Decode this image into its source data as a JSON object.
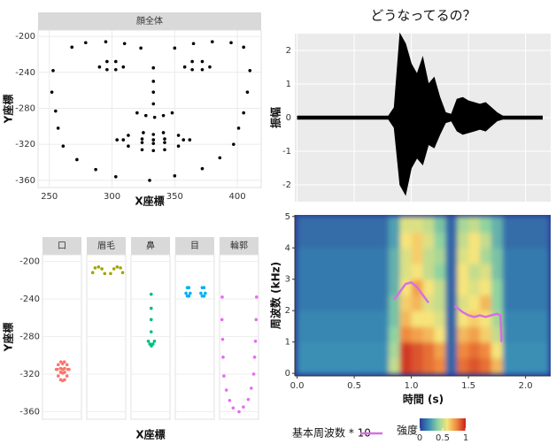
{
  "chart_data": [
    {
      "type": "scatter",
      "strip": "顔全体",
      "xlabel": "X座標",
      "ylabel": "Y座標",
      "color": "#000000",
      "grid": true,
      "xlim": [
        241,
        419
      ],
      "ylim": [
        -368,
        -193
      ],
      "xticks": [
        250,
        300,
        350,
        400
      ],
      "yticks": [
        -200,
        -240,
        -280,
        -320,
        -360
      ],
      "x": [
        304,
        313,
        325,
        333,
        341,
        353,
        362,
        353,
        342,
        333,
        324,
        313,
        309,
        324,
        333,
        342,
        357,
        342,
        333,
        324,
        268,
        279,
        295,
        310,
        323,
        350,
        365,
        380,
        395,
        405,
        333,
        333,
        333,
        333,
        320,
        327,
        334,
        341,
        348,
        290,
        296,
        303,
        309,
        303,
        296,
        358,
        364,
        372,
        378,
        372,
        364,
        253,
        252,
        255,
        257,
        261,
        272,
        287,
        303,
        330,
        350,
        372,
        386,
        397,
        401,
        405,
        408,
        410
      ],
      "y": [
        -315,
        -310,
        -307,
        -309,
        -307,
        -310,
        -315,
        -322,
        -326,
        -327,
        -326,
        -322,
        -315,
        -314,
        -315,
        -314,
        -315,
        -318,
        -319,
        -318,
        -212,
        -207,
        -206,
        -208,
        -213,
        -213,
        -208,
        -206,
        -207,
        -212,
        -235,
        -250,
        -262,
        -275,
        -285,
        -288,
        -290,
        -288,
        -285,
        -234,
        -228,
        -228,
        -234,
        -237,
        -237,
        -234,
        -228,
        -228,
        -234,
        -237,
        -237,
        -238,
        -262,
        -283,
        -302,
        -322,
        -337,
        -348,
        -356,
        -360,
        -355,
        -347,
        -335,
        -320,
        -302,
        -285,
        -262,
        -238
      ]
    },
    {
      "type": "facet-scatter",
      "xlabel": "X座標",
      "ylabel": "Y座標",
      "grid": true,
      "xlim": [
        241,
        419
      ],
      "ylim": [
        -368,
        -193
      ],
      "yticks": [
        -200,
        -240,
        -280,
        -320,
        -360
      ],
      "facets": [
        {
          "name": "口",
          "color": "#f8766d",
          "x": [
            304,
            313,
            325,
            333,
            341,
            353,
            362,
            353,
            342,
            333,
            324,
            313,
            309,
            324,
            333,
            342,
            357,
            342,
            333,
            324
          ],
          "y": [
            -315,
            -310,
            -307,
            -309,
            -307,
            -310,
            -315,
            -322,
            -326,
            -327,
            -326,
            -322,
            -315,
            -314,
            -315,
            -314,
            -315,
            -318,
            -319,
            -318
          ]
        },
        {
          "name": "眉毛",
          "color": "#a3a500",
          "x": [
            268,
            279,
            295,
            310,
            323,
            350,
            365,
            380,
            395,
            405
          ],
          "y": [
            -212,
            -207,
            -206,
            -208,
            -213,
            -213,
            -208,
            -206,
            -207,
            -212
          ]
        },
        {
          "name": "鼻",
          "color": "#00bf7d",
          "x": [
            333,
            333,
            333,
            333,
            320,
            327,
            334,
            341,
            348
          ],
          "y": [
            -235,
            -250,
            -262,
            -275,
            -285,
            -288,
            -290,
            -288,
            -285
          ]
        },
        {
          "name": "目",
          "color": "#00b0f6",
          "x": [
            290,
            296,
            303,
            309,
            303,
            296,
            358,
            364,
            372,
            378,
            372,
            364
          ],
          "y": [
            -234,
            -228,
            -228,
            -234,
            -237,
            -237,
            -234,
            -228,
            -228,
            -234,
            -237,
            -237
          ]
        },
        {
          "name": "輪郭",
          "color": "#e76bf3",
          "x": [
            253,
            252,
            255,
            257,
            261,
            272,
            287,
            303,
            330,
            350,
            372,
            386,
            397,
            401,
            405,
            408,
            410
          ],
          "y": [
            -238,
            -262,
            -283,
            -302,
            -322,
            -337,
            -348,
            -356,
            -360,
            -355,
            -347,
            -335,
            -320,
            -302,
            -285,
            -262,
            -238
          ]
        }
      ]
    },
    {
      "type": "waveform",
      "title": "どうなってるの？",
      "ylabel": "振幅",
      "color": "#000000",
      "grid": true,
      "xlim": [
        -0.02,
        2.22
      ],
      "ylim": [
        -2.5,
        2.5
      ],
      "xticks": [
        0,
        0.5,
        1,
        1.5,
        2
      ],
      "yticks": [
        -2,
        -1,
        0,
        1,
        2
      ],
      "x": [
        0,
        0.05,
        0.1,
        0.15,
        0.2,
        0.25,
        0.3,
        0.35,
        0.4,
        0.45,
        0.5,
        0.55,
        0.6,
        0.65,
        0.7,
        0.75,
        0.8,
        0.85,
        0.9,
        0.95,
        1,
        1.05,
        1.1,
        1.15,
        1.2,
        1.25,
        1.3,
        1.35,
        1.4,
        1.45,
        1.5,
        1.55,
        1.6,
        1.65,
        1.7,
        1.75,
        1.8,
        1.85,
        1.9,
        1.95,
        2,
        2.05,
        2.1,
        2.15
      ],
      "upper": [
        0.05,
        0.05,
        0.05,
        0.05,
        0.05,
        0.05,
        0.05,
        0.05,
        0.05,
        0.05,
        0.05,
        0.05,
        0.05,
        0.05,
        0.05,
        0.05,
        0.05,
        0.3,
        2.5,
        2.2,
        1.6,
        1.3,
        1.8,
        1.0,
        1.2,
        0.6,
        0.15,
        0.1,
        0.55,
        0.6,
        0.5,
        0.45,
        0.4,
        0.45,
        0.3,
        0.15,
        0.05,
        0.05,
        0.05,
        0.05,
        0.05,
        0.05,
        0.05,
        0.05
      ],
      "lower": [
        -0.05,
        -0.05,
        -0.05,
        -0.05,
        -0.05,
        -0.05,
        -0.05,
        -0.05,
        -0.05,
        -0.05,
        -0.05,
        -0.05,
        -0.05,
        -0.05,
        -0.05,
        -0.05,
        -0.05,
        -0.3,
        -2.0,
        -2.3,
        -1.5,
        -1.2,
        -1.4,
        -0.8,
        -0.9,
        -0.5,
        -0.15,
        -0.1,
        -0.4,
        -0.5,
        -0.45,
        -0.4,
        -0.35,
        -0.4,
        -0.25,
        -0.1,
        -0.05,
        -0.05,
        -0.05,
        -0.05,
        -0.05,
        -0.05,
        -0.05,
        -0.05
      ]
    },
    {
      "type": "spectrogram",
      "xlabel": "時間 (s)",
      "ylabel": "周波数 (kHz)",
      "xlim": [
        -0.02,
        2.22
      ],
      "ylim": [
        -0.08,
        5.05
      ],
      "xticks": [
        {
          "value": 0,
          "label": "0.0"
        },
        {
          "value": 0.5,
          "label": "0.5"
        },
        {
          "value": 1,
          "label": "1.0"
        },
        {
          "value": 1.5,
          "label": "1.5"
        },
        {
          "value": 2,
          "label": "2.0"
        }
      ],
      "yticks": [
        0,
        1,
        2,
        3,
        4,
        5
      ],
      "colorscale": [
        "#2b3a98",
        "#3a8fb5",
        "#8fd3a0",
        "#f6e47a",
        "#f08a3c",
        "#c81e1e"
      ],
      "time_bins": [
        0,
        0.1,
        0.2,
        0.3,
        0.4,
        0.5,
        0.6,
        0.7,
        0.8,
        0.9,
        1,
        1.1,
        1.2,
        1.3,
        1.4,
        1.5,
        1.6,
        1.7,
        1.8,
        1.9,
        2,
        2.1,
        2.2
      ],
      "freq_bins": [
        0,
        0.5,
        1,
        1.5,
        2,
        2.5,
        3,
        3.5,
        4,
        4.5,
        5
      ],
      "z": [
        [
          0.2,
          0.2,
          0.2,
          0.2,
          0.2,
          0.2,
          0.2,
          0.2,
          0.5,
          0.95,
          0.9,
          0.85,
          0.8,
          0.1,
          0.85,
          0.9,
          0.85,
          0.7,
          0.2,
          0.2,
          0.2,
          0.2
        ],
        [
          0.2,
          0.2,
          0.2,
          0.2,
          0.2,
          0.2,
          0.2,
          0.2,
          0.45,
          0.95,
          0.9,
          0.85,
          0.75,
          0.1,
          0.8,
          0.85,
          0.8,
          0.6,
          0.2,
          0.2,
          0.2,
          0.2
        ],
        [
          0.18,
          0.18,
          0.18,
          0.18,
          0.18,
          0.18,
          0.18,
          0.18,
          0.4,
          0.8,
          0.75,
          0.7,
          0.6,
          0.1,
          0.7,
          0.75,
          0.65,
          0.5,
          0.18,
          0.18,
          0.18,
          0.18
        ],
        [
          0.18,
          0.18,
          0.18,
          0.18,
          0.18,
          0.18,
          0.18,
          0.18,
          0.35,
          0.7,
          0.6,
          0.6,
          0.55,
          0.1,
          0.6,
          0.65,
          0.6,
          0.45,
          0.18,
          0.18,
          0.18,
          0.18
        ],
        [
          0.15,
          0.15,
          0.15,
          0.15,
          0.15,
          0.15,
          0.15,
          0.15,
          0.35,
          0.65,
          0.7,
          0.55,
          0.5,
          0.1,
          0.55,
          0.6,
          0.7,
          0.4,
          0.15,
          0.15,
          0.15,
          0.15
        ],
        [
          0.15,
          0.15,
          0.15,
          0.15,
          0.15,
          0.15,
          0.15,
          0.15,
          0.3,
          0.6,
          0.75,
          0.6,
          0.5,
          0.1,
          0.6,
          0.55,
          0.6,
          0.4,
          0.15,
          0.15,
          0.15,
          0.15
        ],
        [
          0.15,
          0.15,
          0.15,
          0.15,
          0.15,
          0.15,
          0.15,
          0.15,
          0.3,
          0.55,
          0.6,
          0.5,
          0.4,
          0.1,
          0.6,
          0.5,
          0.55,
          0.35,
          0.15,
          0.15,
          0.15,
          0.15
        ],
        [
          0.15,
          0.15,
          0.15,
          0.15,
          0.15,
          0.15,
          0.15,
          0.15,
          0.3,
          0.55,
          0.65,
          0.5,
          0.45,
          0.1,
          0.55,
          0.6,
          0.45,
          0.35,
          0.15,
          0.15,
          0.15,
          0.15
        ],
        [
          0.12,
          0.12,
          0.12,
          0.12,
          0.12,
          0.12,
          0.12,
          0.12,
          0.25,
          0.6,
          0.65,
          0.55,
          0.4,
          0.1,
          0.5,
          0.6,
          0.5,
          0.3,
          0.12,
          0.12,
          0.12,
          0.12
        ],
        [
          0.12,
          0.12,
          0.12,
          0.12,
          0.12,
          0.12,
          0.12,
          0.12,
          0.25,
          0.55,
          0.55,
          0.5,
          0.35,
          0.1,
          0.45,
          0.5,
          0.4,
          0.3,
          0.12,
          0.12,
          0.12,
          0.12
        ]
      ],
      "line": {
        "name": "基本周波数 * 10",
        "color": "#d670e0",
        "x": [
          0.85,
          0.9,
          0.95,
          1,
          1.05,
          1.1,
          1.15,
          1.25,
          1.38,
          1.45,
          1.5,
          1.55,
          1.6,
          1.65,
          1.7,
          1.75,
          1.78,
          1.79
        ],
        "values": [
          2.35,
          2.6,
          2.85,
          2.9,
          2.75,
          2.5,
          2.25,
          null,
          2.15,
          1.95,
          1.85,
          1.8,
          1.85,
          1.8,
          1.85,
          1.9,
          1.85,
          1.0
        ]
      },
      "colorbar": {
        "title": "強度",
        "lim": [
          0,
          1
        ],
        "ticks": [
          0,
          0.5,
          1
        ]
      }
    }
  ]
}
